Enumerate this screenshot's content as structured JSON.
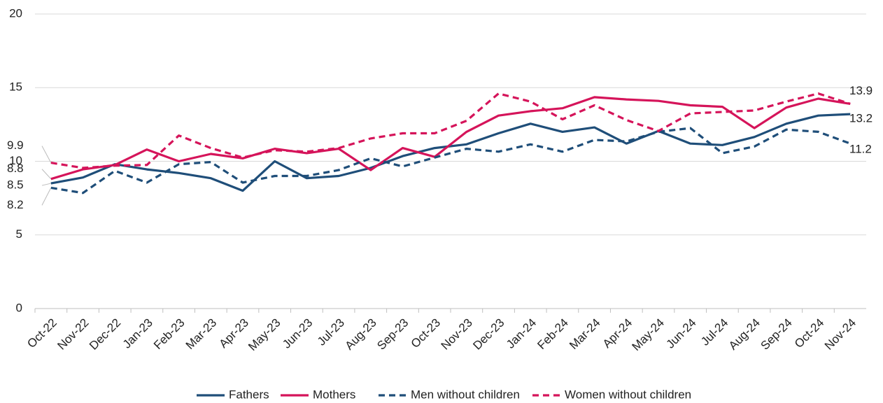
{
  "chart_data": {
    "type": "line",
    "categories": [
      "Oct-22",
      "Nov-22",
      "Dec-22",
      "Jan-23",
      "Feb-23",
      "Mar-23",
      "Apr-23",
      "May-23",
      "Jun-23",
      "Jul-23",
      "Aug-23",
      "Sep-23",
      "Oct-23",
      "Nov-23",
      "Dec-23",
      "Jan-24",
      "Feb-24",
      "Mar-24",
      "Apr-24",
      "May-24",
      "Jun-24",
      "Jul-24",
      "Aug-24",
      "Sep-24",
      "Oct-24",
      "Nov-24"
    ],
    "series": [
      {
        "name": "Fathers",
        "color": "#1f4e79",
        "line_style": "solid",
        "values": [
          8.5,
          8.9,
          9.8,
          9.45,
          9.2,
          8.85,
          8.0,
          10.0,
          8.85,
          9.0,
          9.55,
          10.35,
          10.9,
          11.15,
          11.9,
          12.55,
          12.0,
          12.3,
          11.2,
          12.05,
          11.2,
          11.1,
          11.65,
          12.55,
          13.1,
          13.2
        ]
      },
      {
        "name": "Mothers",
        "color": "#d5145a",
        "line_style": "solid",
        "values": [
          8.8,
          9.45,
          9.75,
          10.8,
          10.0,
          10.5,
          10.2,
          10.85,
          10.55,
          10.85,
          9.4,
          10.9,
          10.3,
          12.0,
          13.1,
          13.4,
          13.6,
          14.35,
          14.2,
          14.1,
          13.8,
          13.7,
          12.25,
          13.65,
          14.25,
          13.9
        ]
      },
      {
        "name": "Men without children",
        "color": "#1f4e79",
        "line_style": "dashed",
        "values": [
          8.2,
          7.85,
          9.35,
          8.55,
          9.8,
          9.95,
          8.55,
          9.0,
          9.0,
          9.4,
          10.2,
          9.65,
          10.25,
          10.85,
          10.65,
          11.15,
          10.65,
          11.45,
          11.35,
          12.0,
          12.25,
          10.55,
          11.0,
          12.15,
          12.0,
          11.2
        ]
      },
      {
        "name": "Women without children",
        "color": "#d5145a",
        "line_style": "dashed",
        "values": [
          9.9,
          9.55,
          9.7,
          9.75,
          11.75,
          10.9,
          10.25,
          10.75,
          10.65,
          10.9,
          11.55,
          11.9,
          11.9,
          12.75,
          14.6,
          14.05,
          12.85,
          13.8,
          12.8,
          12.05,
          13.25,
          13.35,
          13.45,
          14.05,
          14.6,
          13.9
        ]
      }
    ],
    "ylim": [
      0,
      20
    ],
    "yticks": [
      0,
      5,
      10,
      15,
      20
    ],
    "grid": true,
    "legend": "bottom"
  }
}
